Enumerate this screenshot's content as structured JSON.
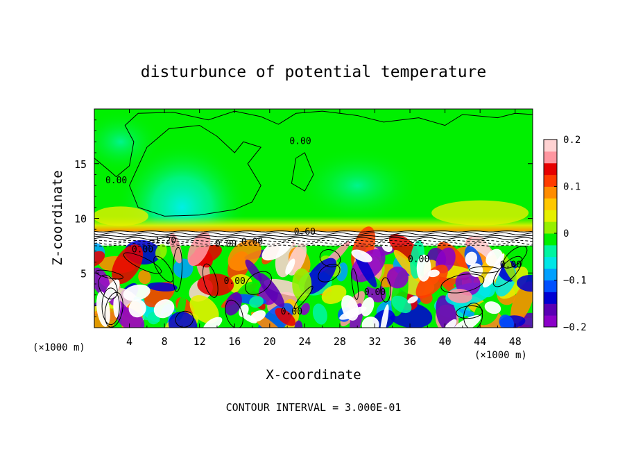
{
  "chart_data": {
    "type": "heatmap",
    "title": "disturbunce of potential temperature",
    "xlabel": "X-coordinate",
    "ylabel": "Z-coordinate",
    "x_unit_left": "(×1000 m)",
    "x_unit_right": "(×1000 m)",
    "footer": "CONTOUR INTERVAL = 3.000E-01",
    "xlim": [
      0,
      50
    ],
    "ylim": [
      0,
      20
    ],
    "x_ticks": [
      4,
      8,
      12,
      16,
      20,
      24,
      28,
      32,
      36,
      40,
      44,
      48
    ],
    "x_tick_labels": [
      "4",
      "8",
      "12",
      "16",
      "20",
      "24",
      "28",
      "32",
      "36",
      "40",
      "44",
      "48"
    ],
    "y_ticks": [
      5,
      10,
      15
    ],
    "y_tick_labels": [
      "5",
      "10",
      "15"
    ],
    "colorbar": {
      "min": -0.2,
      "max": 0.2,
      "tick_values": [
        0.2,
        0.1,
        0,
        -0.1,
        -0.2
      ],
      "tick_labels": [
        "0.2",
        "0.1",
        "0",
        "−0.1",
        "−0.2"
      ],
      "colors": [
        "#8b00c8",
        "#5a00b4",
        "#0000d2",
        "#0050ff",
        "#00a0ff",
        "#00e6e6",
        "#00f5a0",
        "#00f000",
        "#96f000",
        "#e6f000",
        "#ffc800",
        "#ff8c00",
        "#ff3c00",
        "#e60000",
        "#ff96a0",
        "#ffd2d2"
      ]
    },
    "contour_labels": [
      {
        "text": "0.00",
        "x": 2.5,
        "y": 13.2
      },
      {
        "text": "0.00",
        "x": 23.5,
        "y": 16.8
      },
      {
        "text": "0.60",
        "x": 24.0,
        "y": 8.5
      },
      {
        "text": "−1.20",
        "x": 7.8,
        "y": 7.7
      },
      {
        "text": "0.00",
        "x": 15.0,
        "y": 7.4
      },
      {
        "text": "0.00",
        "x": 5.5,
        "y": 6.9
      },
      {
        "text": "0.00",
        "x": 18.0,
        "y": 7.6
      },
      {
        "text": "0.00",
        "x": 37.0,
        "y": 6.0
      },
      {
        "text": "0.00",
        "x": 16.0,
        "y": 4.0
      },
      {
        "text": "0.00",
        "x": 32.0,
        "y": 3.0
      },
      {
        "text": "0.00",
        "x": 22.5,
        "y": 1.2
      },
      {
        "text": "0.00",
        "x": 47.5,
        "y": 5.5
      }
    ],
    "field_description_regions": {
      "upper_layer_z_range": [
        8.8,
        20
      ],
      "upper_layer_value": 0.0,
      "cool_core_center": [
        10,
        11
      ],
      "cool_core_value": -0.08,
      "interface_z_range": [
        7.5,
        8.8
      ],
      "lower_layer_z_range": [
        0,
        7.5
      ],
      "lower_layer_range": [
        -0.2,
        0.2
      ]
    }
  }
}
